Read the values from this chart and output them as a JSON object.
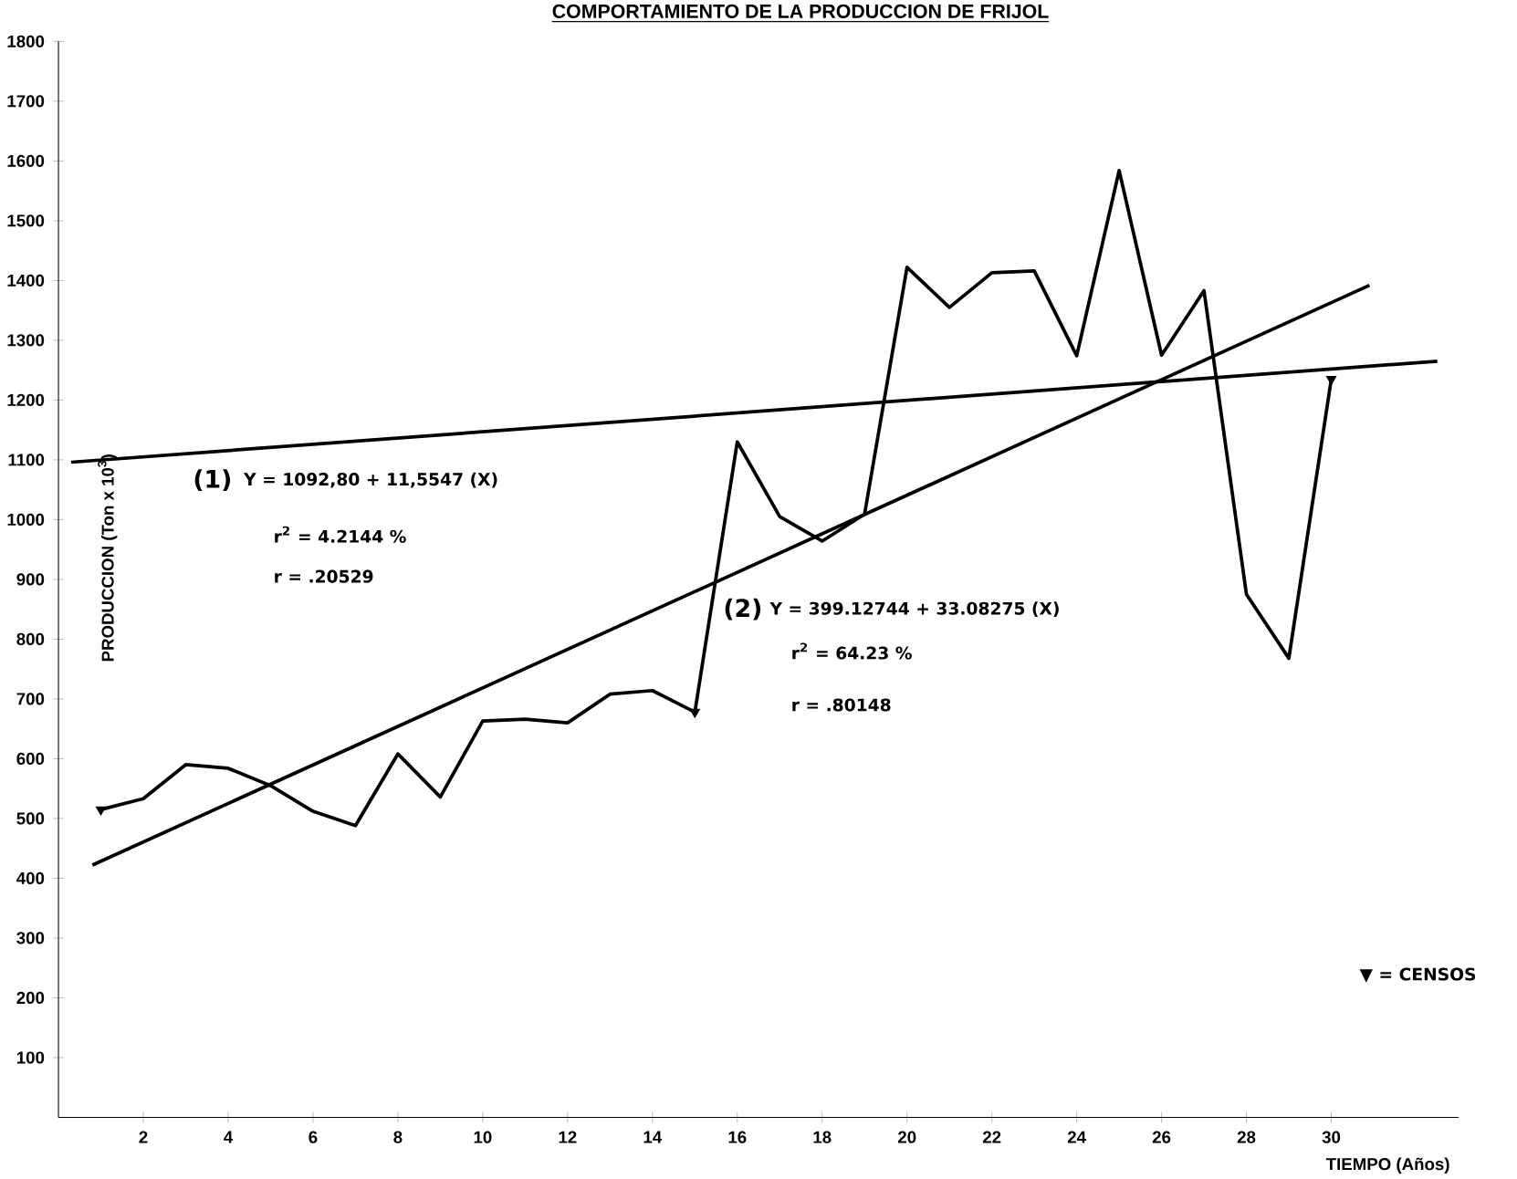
{
  "chart_data": {
    "type": "line",
    "title": "COMPORTAMIENTO DE LA PRODUCCION DE FRIJOL",
    "xlabel": "TIEMPO (Años)",
    "ylabel": "PRODUCCION (Ton x 10$^{3}$)",
    "xlim": [
      0,
      33
    ],
    "ylim": [
      0,
      1800
    ],
    "xticks": [
      2,
      4,
      6,
      8,
      10,
      12,
      14,
      16,
      18,
      20,
      22,
      24,
      26,
      28,
      30
    ],
    "yticks": [
      100,
      200,
      300,
      400,
      500,
      600,
      700,
      800,
      900,
      1000,
      1100,
      1200,
      1300,
      1400,
      1500,
      1600,
      1700,
      1800
    ],
    "grid": false,
    "marker": "none",
    "line_style": "solid",
    "series": [
      {
        "color": "#000000",
        "x": [
          1,
          2,
          3,
          4,
          5,
          6,
          7,
          8,
          9,
          10,
          11,
          12,
          13,
          14,
          15,
          16,
          17,
          18,
          19,
          20,
          21,
          22,
          23,
          24,
          25,
          26,
          27,
          28,
          29,
          30
        ],
        "values": [
          515,
          533,
          590,
          584,
          555,
          512,
          488,
          608,
          536,
          663,
          666,
          660,
          708,
          714,
          678,
          1130,
          1005,
          964,
          1009,
          1422,
          1355,
          1413,
          1416,
          1274,
          1584,
          1275,
          1383,
          875,
          768,
          1235
        ]
      },
      {
        "color": "#000000",
        "x": [
          0.3,
          32.5
        ],
        "values": [
          1096,
          1265
        ]
      },
      {
        "color": "#000000",
        "x": [
          0.8,
          30.9
        ],
        "values": [
          422,
          1392
        ]
      },
      {
        "type": "scatter",
        "color": "#000000",
        "marker": "triangle",
        "x": [
          1,
          15,
          30
        ],
        "values": [
          515,
          678,
          1235
        ]
      }
    ],
    "annotations": [
      "(1)",
      "Y = 1092,80 + 11,5547 (X)",
      "r$^{2}$ = 4.2144 %",
      "r = .20529",
      "(2)",
      "Y = 399.12744 + 33.08275 (X)",
      "r$^{2}$ = 64.23 %",
      "r = .80148",
      "▼ = CENSOS"
    ]
  }
}
